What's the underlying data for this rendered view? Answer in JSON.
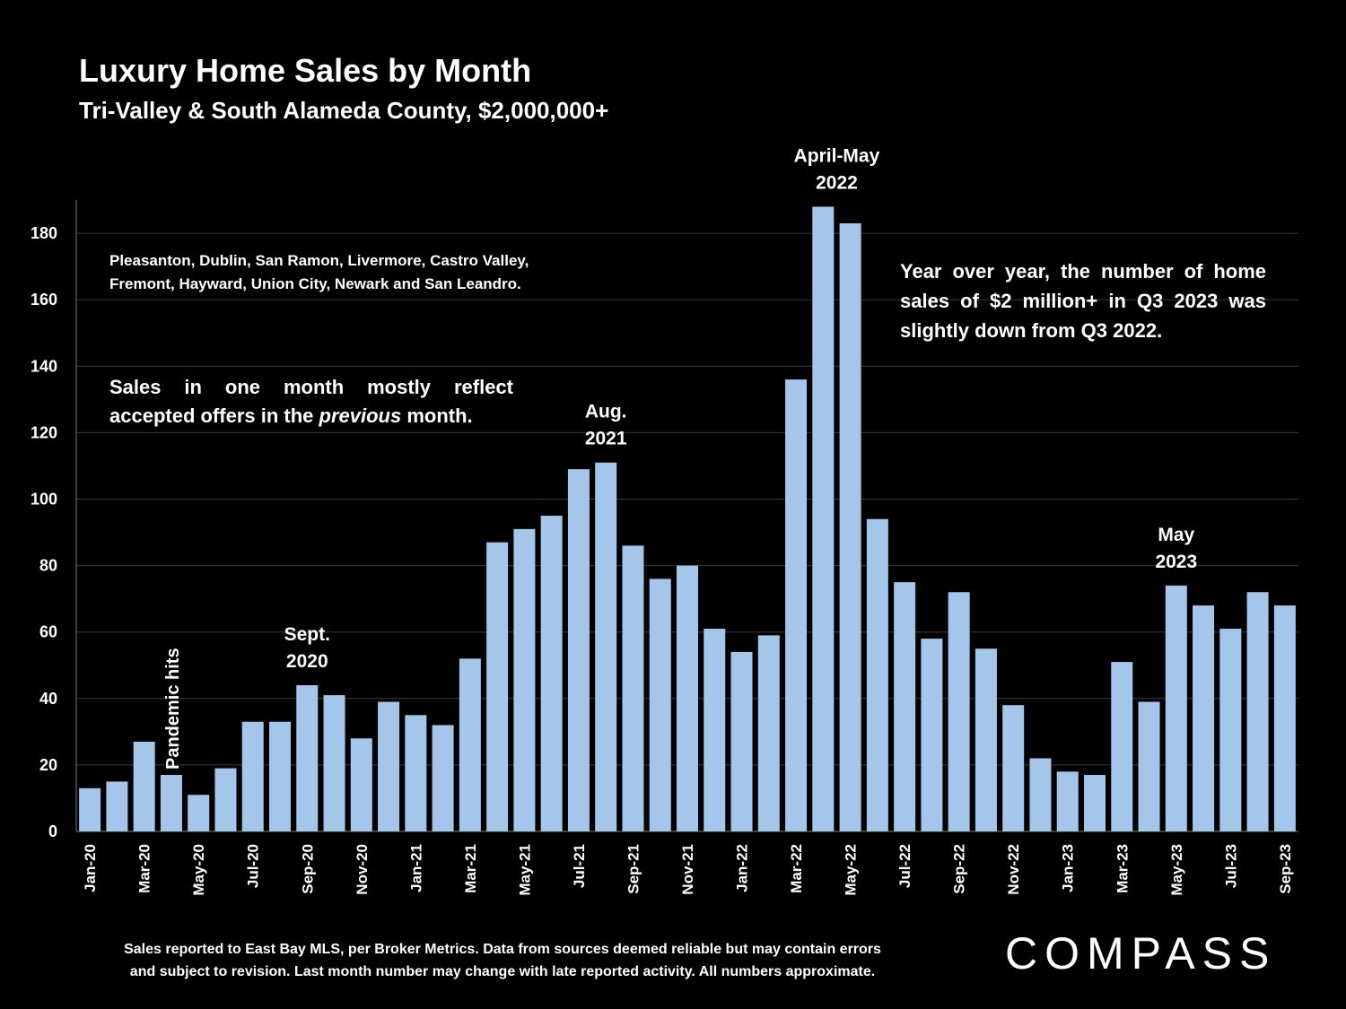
{
  "header": {
    "title": "Luxury Home Sales by Month",
    "subtitle": "Tri-Valley & South Alameda County, $2,000,000+"
  },
  "notes": {
    "cities": "Pleasanton, Dublin, San Ramon, Livermore, Castro Valley, Fremont, Hayward, Union City, Newark and San Leandro.",
    "offers_before": "Sales in one month mostly reflect accepted offers in the ",
    "offers_emphasis": "previous",
    "offers_after": " month.",
    "yoy": "Year over year, the number of home sales of $2 million+ in Q3 2023 was slightly down from Q3 2022."
  },
  "footer": {
    "line1": "Sales reported to East Bay MLS, per Broker Metrics. Data from sources deemed reliable but may contain errors",
    "line2": "and subject to revision. Last month number may change with late reported activity. All numbers approximate."
  },
  "logo": "COMPASS",
  "colors": {
    "bar": "#a4c6ea",
    "background": "#000000",
    "grid": "#3a3a3a"
  },
  "chart_data": {
    "type": "bar",
    "categories": [
      "Jan-20",
      "Feb-20",
      "Mar-20",
      "Apr-20",
      "May-20",
      "Jun-20",
      "Jul-20",
      "Aug-20",
      "Sep-20",
      "Oct-20",
      "Nov-20",
      "Dec-20",
      "Jan-21",
      "Feb-21",
      "Mar-21",
      "Apr-21",
      "May-21",
      "Jun-21",
      "Jul-21",
      "Aug-21",
      "Sep-21",
      "Oct-21",
      "Nov-21",
      "Dec-21",
      "Jan-22",
      "Feb-22",
      "Mar-22",
      "Apr-22",
      "May-22",
      "Jun-22",
      "Jul-22",
      "Aug-22",
      "Sep-22",
      "Oct-22",
      "Nov-22",
      "Dec-22",
      "Jan-23",
      "Feb-23",
      "Mar-23",
      "Apr-23",
      "May-23",
      "Jun-23",
      "Jul-23",
      "Aug-23",
      "Sep-23"
    ],
    "tick_labels": [
      "Jan-20",
      "Mar-20",
      "May-20",
      "Jul-20",
      "Sep-20",
      "Nov-20",
      "Jan-21",
      "Mar-21",
      "May-21",
      "Jul-21",
      "Sep-21",
      "Nov-21",
      "Jan-22",
      "Mar-22",
      "May-22",
      "Jul-22",
      "Sep-22",
      "Nov-22",
      "Jan-23",
      "Mar-23",
      "May-23",
      "Jul-23",
      "Sep-23"
    ],
    "values": [
      13,
      15,
      27,
      17,
      11,
      19,
      33,
      33,
      44,
      41,
      28,
      39,
      35,
      32,
      52,
      87,
      91,
      95,
      109,
      111,
      86,
      76,
      80,
      61,
      54,
      59,
      136,
      188,
      183,
      94,
      75,
      58,
      72,
      55,
      38,
      22,
      18,
      17,
      51,
      39,
      74,
      68,
      61,
      72,
      68
    ],
    "ylim": [
      0,
      190
    ],
    "yticks": [
      0,
      20,
      40,
      60,
      80,
      100,
      120,
      140,
      160,
      180
    ],
    "grid": true,
    "annotations": [
      {
        "category": "Apr-20",
        "lines": [
          "Pandemic hits"
        ],
        "rotated": true
      },
      {
        "category": "Sep-20",
        "lines": [
          "Sept.",
          "2020"
        ]
      },
      {
        "category": "Aug-21",
        "lines": [
          "Aug.",
          "2021"
        ]
      },
      {
        "category": "Apr-22",
        "lines": [
          "April-May",
          "2022"
        ]
      },
      {
        "category": "May-23",
        "lines": [
          "May",
          "2023"
        ]
      }
    ]
  }
}
